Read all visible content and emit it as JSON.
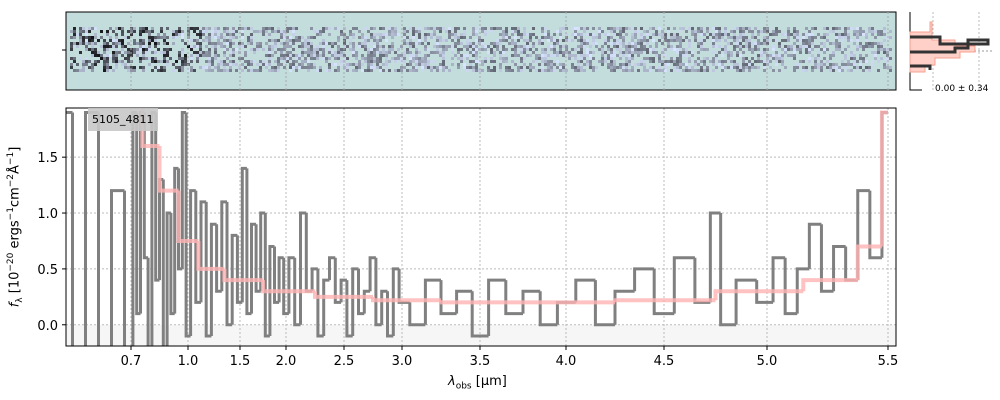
{
  "chart_data": {
    "type": "line",
    "object_id": "5105_4811",
    "xlabel": {
      "sym": "λ",
      "sub": "obs",
      "unit": " [μm]"
    },
    "ylabel": {
      "sym": "f",
      "sub": "λ",
      "p1": " [10",
      "e1": "−20",
      "p2": " ergs",
      "e2": "−1",
      "p3": "cm",
      "e3": "−2",
      "p4": "Å",
      "e4": "−1",
      "p5": "]"
    },
    "xticks": [
      0.7,
      1.0,
      1.5,
      2.0,
      2.5,
      3.0,
      3.5,
      4.0,
      4.5,
      5.0,
      5.5
    ],
    "xtick_labels": [
      "0.7",
      "1.0",
      "1.5",
      "2.0",
      "2.5",
      "3.0",
      "3.5",
      "4.0",
      "4.5",
      "5.0",
      "5.5"
    ],
    "yticks": [
      0.0,
      0.5,
      1.0,
      1.5
    ],
    "ytick_labels": [
      "0.0",
      "0.5",
      "1.0",
      "1.5"
    ],
    "ylim": [
      -0.19,
      1.94
    ],
    "xlim": [
      0.6,
      5.55
    ],
    "grid": true,
    "series": [
      {
        "name": "data",
        "color": "#808080",
        "x": [
          0.6,
          0.62,
          0.64,
          0.66,
          0.68,
          0.7,
          0.72,
          0.74,
          0.76,
          0.78,
          0.8,
          0.82,
          0.84,
          0.86,
          0.88,
          0.9,
          0.92,
          0.94,
          0.96,
          0.98,
          1.0,
          1.05,
          1.1,
          1.15,
          1.2,
          1.25,
          1.3,
          1.35,
          1.4,
          1.45,
          1.5,
          1.55,
          1.6,
          1.65,
          1.7,
          1.75,
          1.8,
          1.85,
          1.9,
          1.95,
          2.0,
          2.05,
          2.1,
          2.15,
          2.2,
          2.25,
          2.3,
          2.35,
          2.4,
          2.45,
          2.5,
          2.55,
          2.6,
          2.65,
          2.7,
          2.75,
          2.8,
          2.85,
          2.9,
          2.95,
          3.0,
          3.1,
          3.2,
          3.3,
          3.4,
          3.5,
          3.6,
          3.7,
          3.8,
          3.9,
          4.0,
          4.1,
          4.2,
          4.3,
          4.4,
          4.5,
          4.6,
          4.7,
          4.75,
          4.8,
          4.9,
          5.0,
          5.05,
          5.1,
          5.15,
          5.2,
          5.25,
          5.3,
          5.35,
          5.4,
          5.45,
          5.5
        ],
        "y": [
          1.9,
          -0.2,
          1.9,
          -0.2,
          1.2,
          -0.2,
          1.9,
          0.1,
          1.9,
          0.6,
          -0.2,
          1.9,
          0.4,
          1.3,
          -0.2,
          1.0,
          0.1,
          1.4,
          0.5,
          1.9,
          -0.1,
          1.2,
          0.2,
          1.1,
          -0.1,
          0.9,
          0.3,
          1.1,
          0.0,
          0.8,
          0.2,
          1.4,
          0.1,
          0.9,
          0.3,
          1.0,
          -0.1,
          0.7,
          0.2,
          0.6,
          0.1,
          0.6,
          0.0,
          1.0,
          0.3,
          0.5,
          -0.1,
          0.4,
          0.6,
          0.2,
          0.4,
          -0.1,
          0.5,
          0.1,
          0.3,
          0.6,
          0.0,
          0.3,
          -0.1,
          0.5,
          0.2,
          0.0,
          0.4,
          0.1,
          0.3,
          -0.1,
          0.4,
          0.1,
          0.3,
          0.0,
          0.2,
          0.4,
          0.0,
          0.3,
          0.5,
          0.1,
          0.6,
          0.2,
          1.0,
          0.0,
          0.4,
          0.2,
          0.6,
          0.1,
          0.5,
          0.9,
          0.3,
          0.7,
          0.4,
          1.2,
          0.6,
          1.9
        ]
      },
      {
        "name": "model",
        "color": "#ffb3b3",
        "x": [
          0.72,
          0.8,
          0.9,
          1.0,
          1.2,
          1.5,
          2.0,
          2.5,
          3.0,
          3.5,
          4.0,
          4.5,
          5.0,
          5.3,
          5.45,
          5.5
        ],
        "y": [
          1.95,
          1.6,
          1.2,
          0.75,
          0.5,
          0.4,
          0.3,
          0.25,
          0.22,
          0.2,
          0.2,
          0.22,
          0.3,
          0.4,
          0.7,
          1.9
        ]
      }
    ],
    "histogram_label": "0.00 ± 0.34"
  }
}
